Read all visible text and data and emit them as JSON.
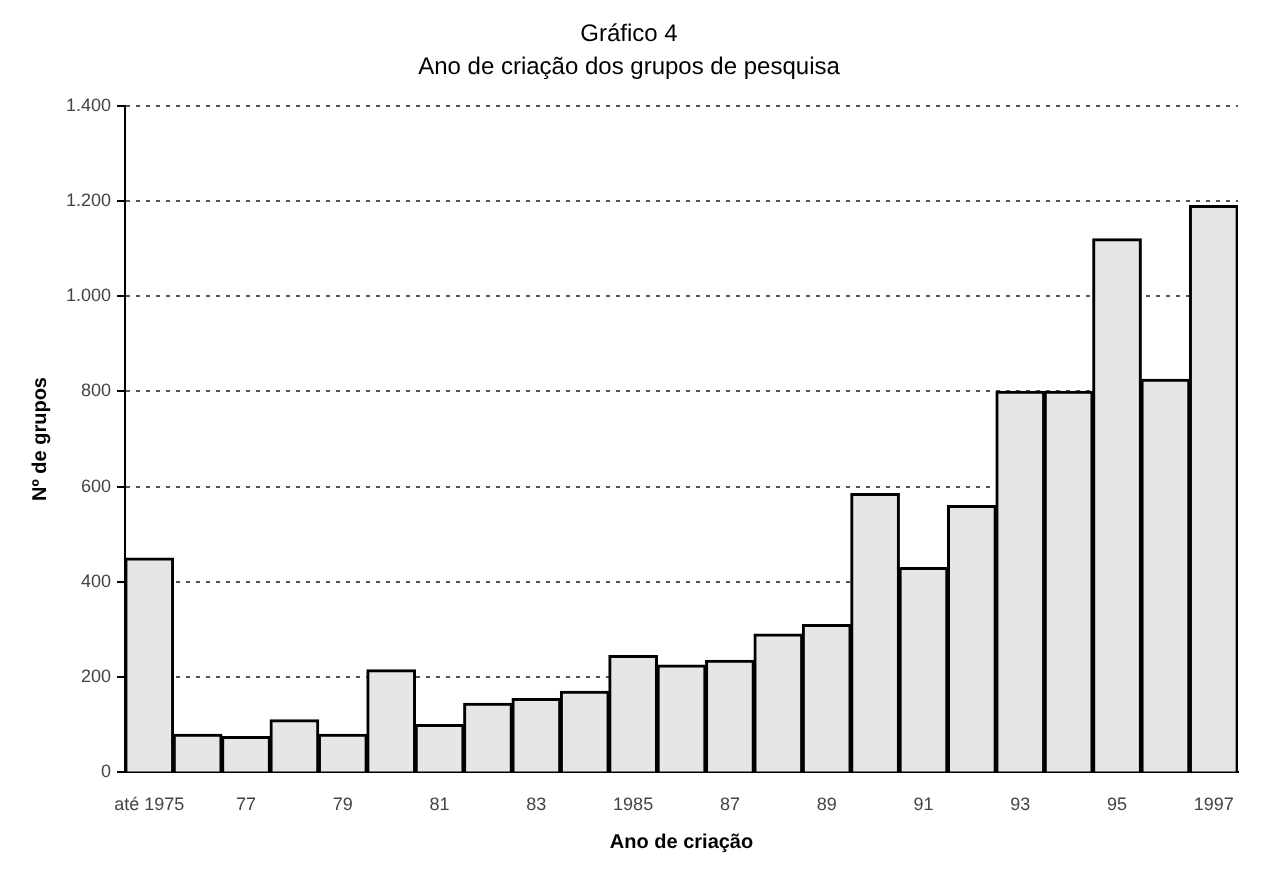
{
  "chart_data": {
    "type": "bar",
    "title": "Gráfico 4",
    "subtitle": "Ano de criação dos grupos de pesquisa",
    "xlabel": "Ano de criação",
    "ylabel": "Nº de grupos",
    "categories": [
      "até 1975",
      null,
      "77",
      null,
      "79",
      null,
      "81",
      null,
      "83",
      null,
      "1985",
      null,
      "87",
      null,
      "89",
      null,
      "91",
      null,
      "93",
      null,
      "95",
      null,
      "1997"
    ],
    "values": [
      450,
      80,
      75,
      110,
      80,
      215,
      100,
      145,
      155,
      170,
      245,
      225,
      235,
      290,
      310,
      585,
      430,
      560,
      800,
      800,
      1120,
      825,
      1190
    ],
    "color": "#e6e6e6",
    "ylim": [
      0,
      1400
    ],
    "yticks": [
      0,
      {
        "value": 200,
        "label": "200"
      },
      {
        "value": 400,
        "label": "400"
      },
      {
        "value": 600,
        "label": "600"
      },
      {
        "value": 800,
        "label": "800"
      },
      {
        "value": 1000,
        "label": "1.000"
      },
      {
        "value": 1200,
        "label": "1.200"
      },
      {
        "value": 1400,
        "label": "1.400"
      }
    ],
    "grid": "y",
    "line_style": "dotted"
  }
}
